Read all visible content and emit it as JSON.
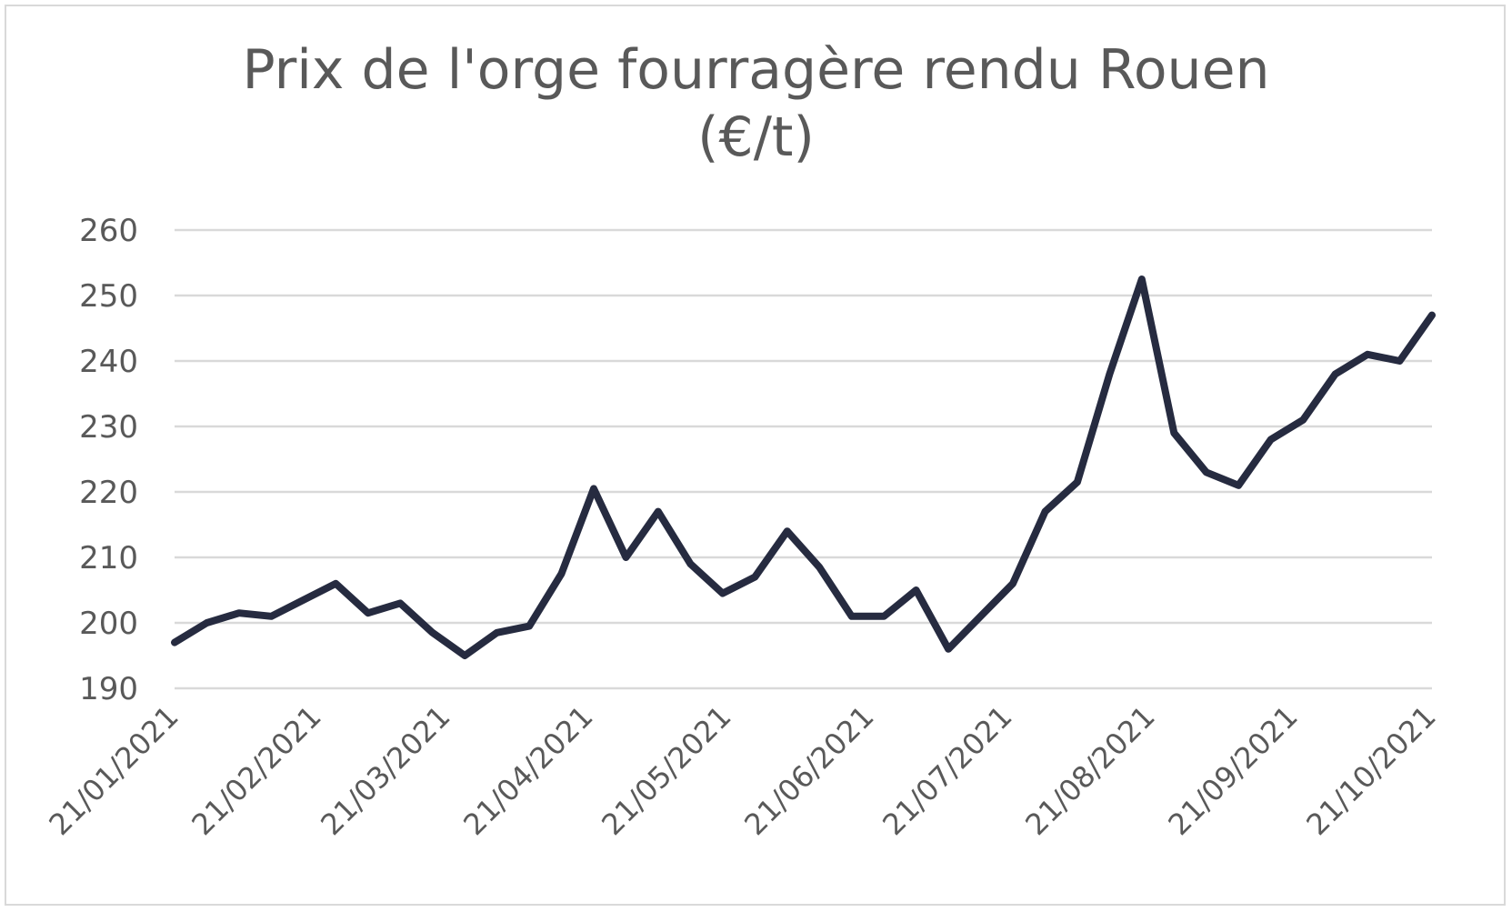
{
  "chart_data": {
    "type": "line",
    "title": "Prix de l'orge fourragère rendu Rouen",
    "subtitle": "(€/t)",
    "xlabel": "",
    "ylabel": "",
    "ylim": [
      190,
      260
    ],
    "yticks": [
      "190",
      "200",
      "210",
      "220",
      "230",
      "240",
      "250",
      "260"
    ],
    "xticks": [
      "21/01/2021",
      "21/02/2021",
      "21/03/2021",
      "21/04/2021",
      "21/05/2021",
      "21/06/2021",
      "21/07/2021",
      "21/08/2021",
      "21/09/2021",
      "21/10/2021"
    ],
    "grid": true,
    "legend": "none",
    "line_color": "#262b40",
    "grid_color": "#d9d9d9",
    "series": [
      {
        "x": [
          "21/01/2021",
          "28/01/2021",
          "04/02/2021",
          "11/02/2021",
          "18/02/2021",
          "25/02/2021",
          "04/03/2021",
          "11/03/2021",
          "18/03/2021",
          "25/03/2021",
          "01/04/2021",
          "08/04/2021",
          "15/04/2021",
          "22/04/2021",
          "29/04/2021",
          "06/05/2021",
          "13/05/2021",
          "20/05/2021",
          "27/05/2021",
          "03/06/2021",
          "10/06/2021",
          "17/06/2021",
          "24/06/2021",
          "01/07/2021",
          "08/07/2021",
          "15/07/2021",
          "22/07/2021",
          "29/07/2021",
          "05/08/2021",
          "12/08/2021",
          "19/08/2021",
          "26/08/2021",
          "02/09/2021",
          "09/09/2021",
          "16/09/2021",
          "23/09/2021",
          "30/09/2021",
          "07/10/2021",
          "14/10/2021",
          "21/10/2021"
        ],
        "values": [
          197,
          200,
          201.5,
          201,
          203.5,
          206,
          201.5,
          203,
          198.5,
          195,
          198.5,
          199.5,
          207.5,
          220.5,
          210,
          217,
          209,
          204.5,
          207,
          214,
          208.5,
          201,
          201,
          205,
          196,
          201,
          206,
          217,
          221.5,
          238,
          252.5,
          229,
          223,
          221,
          228,
          231,
          238,
          241,
          240,
          247
        ]
      }
    ]
  }
}
